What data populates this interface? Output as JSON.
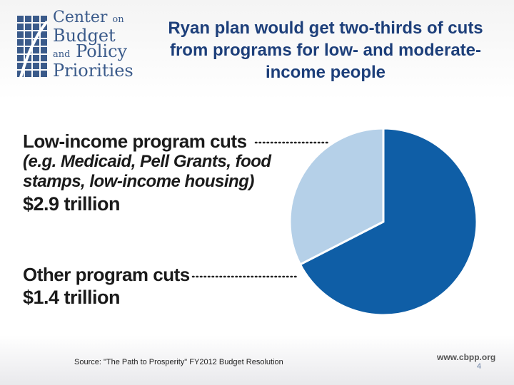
{
  "logo": {
    "line1": "Center",
    "line1_small": "on",
    "line2": "Budget",
    "line3_small": "and",
    "line3": "Policy",
    "line4": "Priorities"
  },
  "title": "Ryan plan would get two-thirds of cuts from programs for low- and moderate-income people",
  "chart_data": {
    "type": "pie",
    "title": "Ryan plan would get two-thirds of cuts from programs for low- and moderate-income people",
    "unit": "trillion",
    "slices": [
      {
        "label": "Low-income program cuts",
        "examples": "(e.g. Medicaid, Pell Grants, food stamps, low-income housing)",
        "value": 2.9,
        "value_label": "$2.9 trillion",
        "color": "#0f5ea6"
      },
      {
        "label": "Other program cuts",
        "value": 1.4,
        "value_label": "$1.4 trillion",
        "color": "#b5d0e8"
      }
    ],
    "start_angle_deg": 0
  },
  "footer": {
    "source": "Source: \"The Path to Prosperity\" FY2012 Budget Resolution",
    "website": "www.cbpp.org",
    "page_number": "4"
  }
}
